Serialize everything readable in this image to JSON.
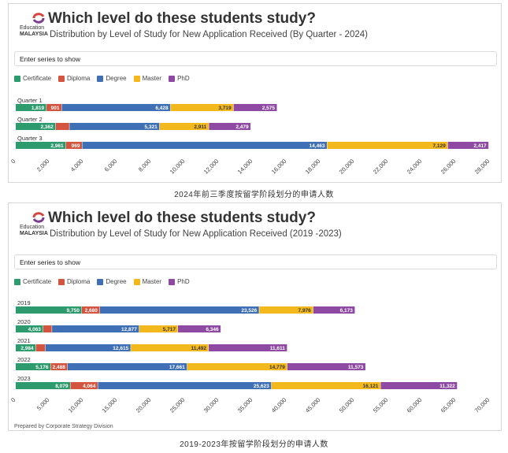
{
  "colors": {
    "Certificate": "#2e9b6e",
    "Diploma": "#d4553f",
    "Degree": "#3f6fb5",
    "Master": "#f2b81c",
    "PhD": "#8e4aa3"
  },
  "panels": [
    {
      "logo_line1": "Education",
      "logo_line2": "MALAYSIA",
      "title": "Which level do these students study?",
      "subtitle": "Distribution by Level of Study for New Application Received (By Quarter - 2024)",
      "search_text": "Enter series to show",
      "legend": [
        "Certificate",
        "Diploma",
        "Degree",
        "Master",
        "PhD"
      ],
      "caption": "2024年前三季度按留学阶段划分的申请人数"
    },
    {
      "logo_line1": "Education",
      "logo_line2": "MALAYSIA",
      "title": "Which level do these students study?",
      "subtitle": "Distribution by Level of Study for New Application Received (2019 -2023)",
      "search_text": "Enter series to show",
      "legend": [
        "Certificate",
        "Diploma",
        "Degree",
        "Master",
        "PhD"
      ],
      "footer": "Prepared by Corporate Strategy Division",
      "caption": "2019-2023年按留学阶段划分的申请人数"
    }
  ],
  "chart_data": [
    {
      "type": "bar",
      "orientation": "horizontal",
      "stacked": true,
      "title": "Which level do these students study?",
      "subtitle": "Distribution by Level of Study for New Application Received (By Quarter - 2024)",
      "categories": [
        "Quarter 1",
        "Quarter 2",
        "Quarter 3"
      ],
      "series": [
        {
          "name": "Certificate",
          "values": [
            1819,
            2362,
            2961
          ]
        },
        {
          "name": "Diploma",
          "values": [
            901,
            816,
            969
          ]
        },
        {
          "name": "Degree",
          "values": [
            6428,
            5321,
            14463
          ]
        },
        {
          "name": "Master",
          "values": [
            3719,
            2911,
            7129
          ]
        },
        {
          "name": "PhD",
          "values": [
            2575,
            2479,
            2417
          ]
        }
      ],
      "xlim": [
        0,
        28000
      ],
      "ticks": [
        "0",
        "2,000",
        "4,000",
        "6,000",
        "8,000",
        "10,000",
        "12,000",
        "14,000",
        "16,000",
        "18,000",
        "20,000",
        "22,000",
        "24,000",
        "26,000",
        "28,000"
      ],
      "tick_values": [
        0,
        2000,
        4000,
        6000,
        8000,
        10000,
        12000,
        14000,
        16000,
        18000,
        20000,
        22000,
        24000,
        26000,
        28000
      ],
      "legend": "top-left",
      "grid": false
    },
    {
      "type": "bar",
      "orientation": "horizontal",
      "stacked": true,
      "title": "Which level do these students study?",
      "subtitle": "Distribution by Level of Study for New Application Received (2019 -2023)",
      "categories": [
        "2019",
        "2020",
        "2021",
        "2022",
        "2023"
      ],
      "series": [
        {
          "name": "Certificate",
          "values": [
            9750,
            4063,
            2984,
            5176,
            8079
          ]
        },
        {
          "name": "Diploma",
          "values": [
            2680,
            1300,
            1400,
            2488,
            4064
          ]
        },
        {
          "name": "Degree",
          "values": [
            23526,
            12877,
            12615,
            17661,
            25623
          ]
        },
        {
          "name": "Master",
          "values": [
            7976,
            5717,
            11492,
            14779,
            16121
          ]
        },
        {
          "name": "PhD",
          "values": [
            6173,
            6346,
            11611,
            11573,
            11322
          ]
        }
      ],
      "labels_shown": [
        [
          "9,750",
          "2,680",
          "23,526",
          "7,976",
          "6,173"
        ],
        [
          "4,063",
          "",
          "12,877",
          "5,717",
          "6,346"
        ],
        [
          "2,984",
          "",
          "12,615",
          "11,492",
          "11,611"
        ],
        [
          "5,176",
          "2,488",
          "17,661",
          "14,779",
          "11,573"
        ],
        [
          "8,079",
          "4,064",
          "25,623",
          "16,121",
          "11,322"
        ]
      ],
      "xlim": [
        0,
        70000
      ],
      "ticks": [
        "0",
        "5,000",
        "10,000",
        "15,000",
        "20,000",
        "25,000",
        "30,000",
        "35,000",
        "40,000",
        "45,000",
        "50,000",
        "55,000",
        "60,000",
        "65,000",
        "70,000"
      ],
      "tick_values": [
        0,
        5000,
        10000,
        15000,
        20000,
        25000,
        30000,
        35000,
        40000,
        45000,
        50000,
        55000,
        60000,
        65000,
        70000
      ],
      "legend": "top-left",
      "grid": false
    }
  ]
}
